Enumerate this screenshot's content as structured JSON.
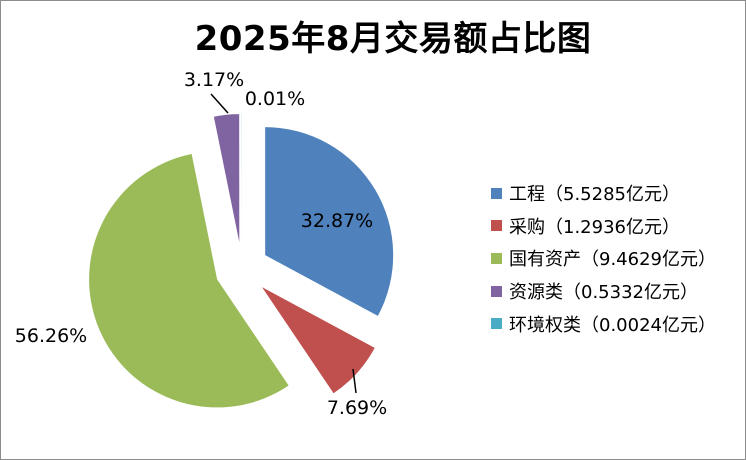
{
  "chart_data": {
    "type": "pie",
    "title": "2025年8月交易额占比图",
    "slices": [
      {
        "label": "工程（5.5285亿元）",
        "value": 5.5285,
        "percent_label": "32.87%",
        "color": "#4F81BD"
      },
      {
        "label": "采购（1.2936亿元）",
        "value": 1.2936,
        "percent_label": "7.69%",
        "color": "#C0504D"
      },
      {
        "label": "国有资产（9.4629亿元）",
        "value": 9.4629,
        "percent_label": "56.26%",
        "color": "#9BBB59"
      },
      {
        "label": "资源类（0.5332亿元）",
        "value": 0.5332,
        "percent_label": "3.17%",
        "color": "#8064A2"
      },
      {
        "label": "环境权类（0.0024亿元）",
        "value": 0.0024,
        "percent_label": "0.01%",
        "color": "#4BACC6"
      }
    ],
    "legend_position": "right",
    "exploded": true
  }
}
